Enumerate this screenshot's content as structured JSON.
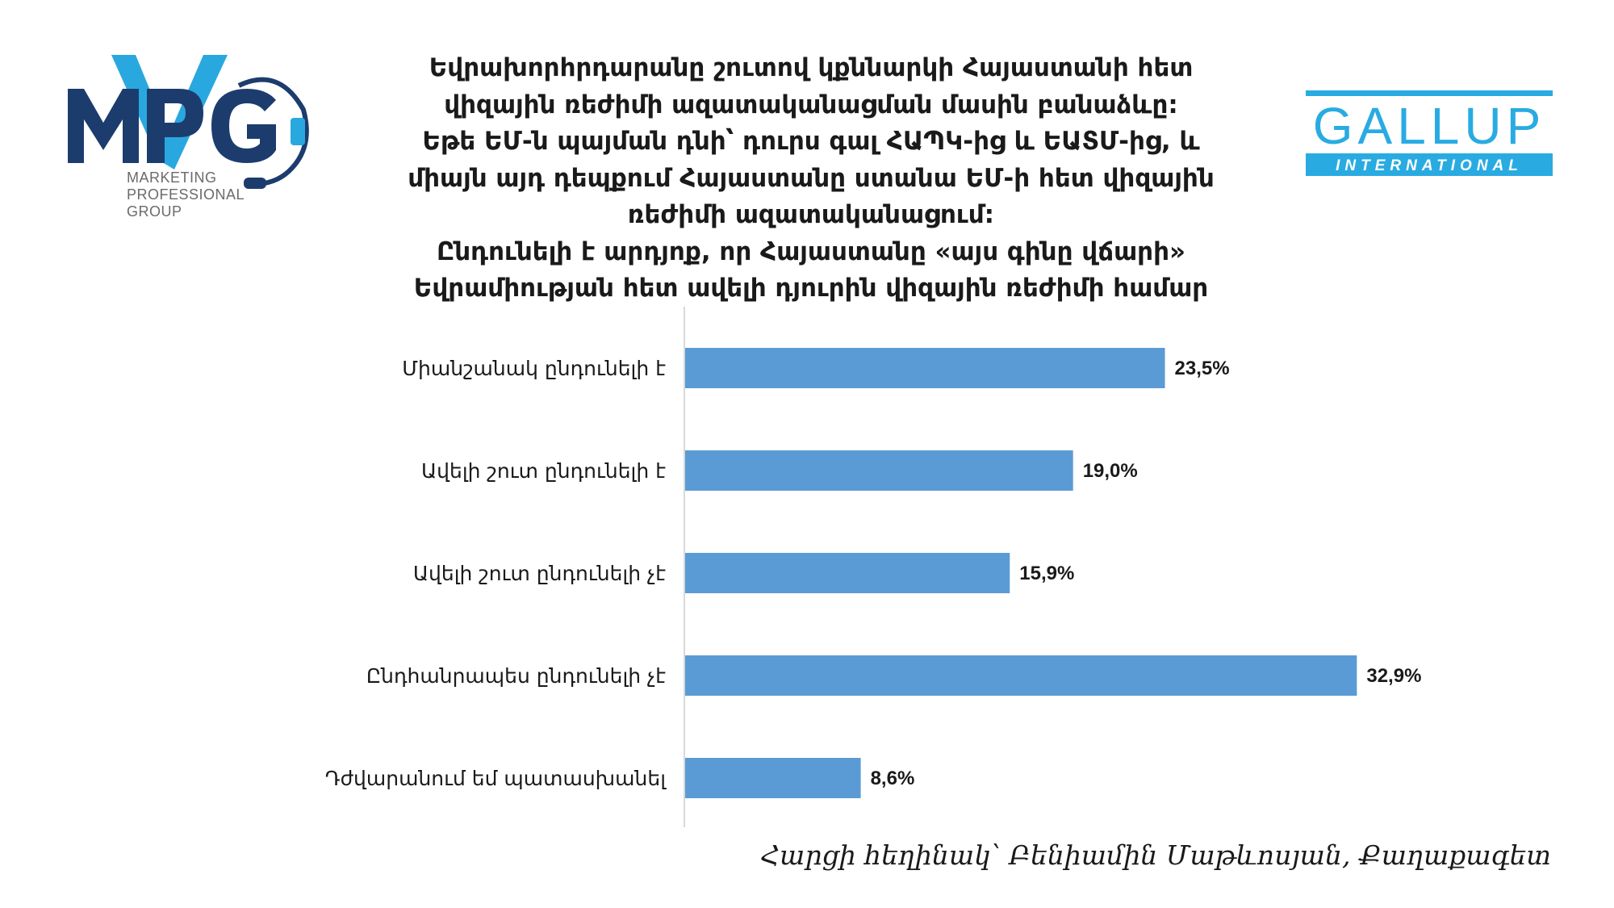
{
  "logos": {
    "mpg": {
      "mark": "MPG",
      "line1": "MARKETING",
      "line2": "PROFESSIONAL",
      "line3": "GROUP",
      "dark_color": "#1d3c6e",
      "light_color": "#29a8e0"
    },
    "gallup": {
      "name": "GALLUP",
      "tagline": "INTERNATIONAL",
      "color": "#29abe2"
    }
  },
  "title_lines": [
    "Եվրախորհրդարանը շուտով կքննարկի Հայաստանի հետ",
    "վիզային ռեժիմի ազատականացման մասին բանաձևը:",
    "Եթե ԵՄ-ն պայման դնի՝ դուրս գալ ՀԱՊԿ-ից և ԵԱՏՄ-ից, և",
    "միայն այդ դեպքում Հայաստանը ստանա ԵՄ-ի հետ վիզային",
    "ռեժիմի ազատականացում:",
    "Ընդունելի է արդյոք, որ Հայաստանը «այս գինը վճարի»",
    "Եվրամիության հետ ավելի դյուրին վիզային ռեժիմի համար"
  ],
  "chart_data": {
    "type": "bar",
    "orientation": "horizontal",
    "categories": [
      "Միանշանակ ընդունելի է",
      "Ավելի շուտ ընդունելի է",
      "Ավելի շուտ ընդունելի չէ",
      "Ընդհանրապես ընդունելի չէ",
      "Դժվարանում եմ պատասխանել"
    ],
    "values": [
      23.5,
      19.0,
      15.9,
      32.9,
      8.6
    ],
    "value_labels": [
      "23,5%",
      "19,0%",
      "15,9%",
      "32,9%",
      "8,6%"
    ],
    "unit": "%",
    "bar_color": "#5b9bd5",
    "axis_color": "#d9d9d9",
    "grid": false,
    "legend": "none"
  },
  "footer": {
    "author": "Հարցի հեղինակ՝ Բենիամին Մաթևոսյան, Քաղաքագետ"
  }
}
